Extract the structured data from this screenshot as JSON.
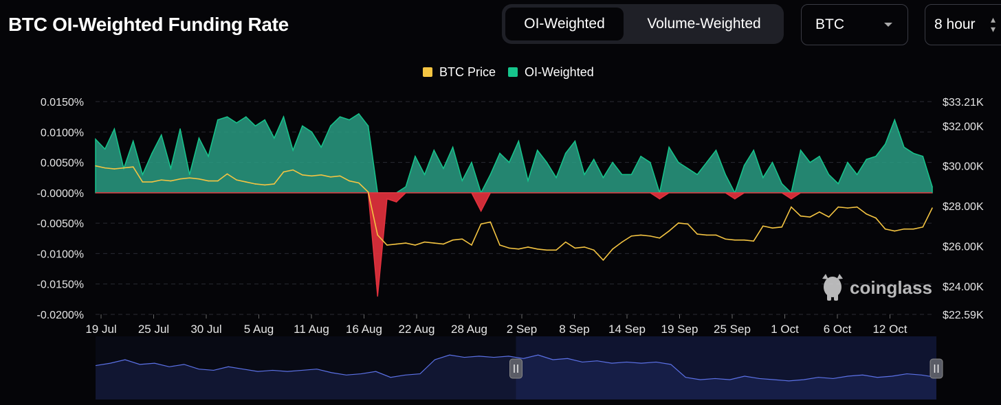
{
  "header": {
    "title": "BTC OI-Weighted Funding Rate",
    "tabs": [
      {
        "label": "OI-Weighted",
        "active": true
      },
      {
        "label": "Volume-Weighted",
        "active": false
      }
    ],
    "symbol_select": {
      "value": "BTC",
      "icon": "chevron-down-icon"
    },
    "interval_select": {
      "value": "8 hour",
      "icon": "up-down-arrows-icon"
    }
  },
  "watermark": {
    "text": "coinglass",
    "icon": "bull-logo-icon"
  },
  "colors": {
    "background": "#050508",
    "price": "#f5c542",
    "positive": "#16c58c",
    "positive_fill": "#2a9c82",
    "negative": "#e5323e",
    "navigator_line": "#5c72e8",
    "navigator_fill": "#0f1430"
  },
  "chart_data": {
    "type": "area",
    "legend": [
      {
        "name": "BTC Price",
        "color": "#f5c542"
      },
      {
        "name": "OI-Weighted",
        "color": "#16c58c"
      }
    ],
    "legend_position": "top-center",
    "y_left_ticks": [
      "0.0150%",
      "0.0100%",
      "0.0050%",
      "-0.0000%",
      "-0.0050%",
      "-0.0100%",
      "-0.0150%",
      "-0.0200%"
    ],
    "y_right_ticks": [
      "$33.21K",
      "$32.00K",
      "$30.00K",
      "$28.00K",
      "$26.00K",
      "$24.00K",
      "$22.59K"
    ],
    "y_left_range": [
      -0.02,
      0.015
    ],
    "y_right_range": [
      22.59,
      33.21
    ],
    "y_right_tick_values": [
      33.21,
      32.0,
      30.0,
      28.0,
      26.0,
      24.0,
      22.59
    ],
    "x_ticks": [
      "19 Jul",
      "25 Jul",
      "30 Jul",
      "5 Aug",
      "11 Aug",
      "16 Aug",
      "22 Aug",
      "28 Aug",
      "2 Sep",
      "8 Sep",
      "14 Sep",
      "19 Sep",
      "25 Sep",
      "1 Oct",
      "6 Oct",
      "12 Oct"
    ],
    "x_range": [
      "2023-07-19",
      "2023-10-16"
    ],
    "grid": "horizontal-dashed",
    "series": [
      {
        "name": "OI-Weighted",
        "unit": "%",
        "points": [
          [
            "2023-07-19",
            0.0088
          ],
          [
            "2023-07-20",
            0.0072
          ],
          [
            "2023-07-21",
            0.0105
          ],
          [
            "2023-07-22",
            0.004
          ],
          [
            "2023-07-23",
            0.0085
          ],
          [
            "2023-07-24",
            0.003
          ],
          [
            "2023-07-25",
            0.0065
          ],
          [
            "2023-07-26",
            0.0095
          ],
          [
            "2023-07-27",
            0.004
          ],
          [
            "2023-07-28",
            0.0105
          ],
          [
            "2023-07-29",
            0.003
          ],
          [
            "2023-07-30",
            0.009
          ],
          [
            "2023-07-31",
            0.006
          ],
          [
            "2023-08-01",
            0.012
          ],
          [
            "2023-08-02",
            0.0125
          ],
          [
            "2023-08-03",
            0.0115
          ],
          [
            "2023-08-04",
            0.0125
          ],
          [
            "2023-08-05",
            0.011
          ],
          [
            "2023-08-06",
            0.012
          ],
          [
            "2023-08-07",
            0.009
          ],
          [
            "2023-08-08",
            0.0125
          ],
          [
            "2023-08-09",
            0.007
          ],
          [
            "2023-08-10",
            0.011
          ],
          [
            "2023-08-11",
            0.01
          ],
          [
            "2023-08-12",
            0.0075
          ],
          [
            "2023-08-13",
            0.011
          ],
          [
            "2023-08-14",
            0.0125
          ],
          [
            "2023-08-15",
            0.012
          ],
          [
            "2023-08-16",
            0.013
          ],
          [
            "2023-08-17",
            0.011
          ],
          [
            "2023-08-18",
            -0.017
          ],
          [
            "2023-08-19",
            -0.001
          ],
          [
            "2023-08-20",
            -0.0015
          ],
          [
            "2023-08-21",
            0.001
          ],
          [
            "2023-08-22",
            0.006
          ],
          [
            "2023-08-23",
            0.003
          ],
          [
            "2023-08-24",
            0.007
          ],
          [
            "2023-08-25",
            0.004
          ],
          [
            "2023-08-26",
            0.0075
          ],
          [
            "2023-08-27",
            0.002
          ],
          [
            "2023-08-28",
            0.005
          ],
          [
            "2023-08-29",
            -0.003
          ],
          [
            "2023-08-30",
            0.003
          ],
          [
            "2023-08-31",
            0.0065
          ],
          [
            "2023-09-01",
            0.005
          ],
          [
            "2023-09-02",
            0.0085
          ],
          [
            "2023-09-03",
            0.002
          ],
          [
            "2023-09-04",
            0.007
          ],
          [
            "2023-09-05",
            0.005
          ],
          [
            "2023-09-06",
            0.0025
          ],
          [
            "2023-09-07",
            0.0065
          ],
          [
            "2023-09-08",
            0.0085
          ],
          [
            "2023-09-09",
            0.003
          ],
          [
            "2023-09-10",
            0.0055
          ],
          [
            "2023-09-11",
            0.0025
          ],
          [
            "2023-09-12",
            0.005
          ],
          [
            "2023-09-13",
            0.003
          ],
          [
            "2023-09-14",
            0.003
          ],
          [
            "2023-09-15",
            0.006
          ],
          [
            "2023-09-16",
            0.005
          ],
          [
            "2023-09-17",
            -0.001
          ],
          [
            "2023-09-18",
            0.0075
          ],
          [
            "2023-09-19",
            0.005
          ],
          [
            "2023-09-20",
            0.004
          ],
          [
            "2023-09-21",
            0.003
          ],
          [
            "2023-09-22",
            0.005
          ],
          [
            "2023-09-23",
            0.007
          ],
          [
            "2023-09-24",
            0.003
          ],
          [
            "2023-09-25",
            -0.001
          ],
          [
            "2023-09-26",
            0.0045
          ],
          [
            "2023-09-27",
            0.007
          ],
          [
            "2023-09-28",
            0.0025
          ],
          [
            "2023-09-29",
            0.005
          ],
          [
            "2023-09-30",
            0.0015
          ],
          [
            "2023-10-01",
            -0.001
          ],
          [
            "2023-10-02",
            0.007
          ],
          [
            "2023-10-03",
            0.005
          ],
          [
            "2023-10-04",
            0.006
          ],
          [
            "2023-10-05",
            0.003
          ],
          [
            "2023-10-06",
            0.0015
          ],
          [
            "2023-10-07",
            0.005
          ],
          [
            "2023-10-08",
            0.003
          ],
          [
            "2023-10-09",
            0.0055
          ],
          [
            "2023-10-10",
            0.006
          ],
          [
            "2023-10-11",
            0.008
          ],
          [
            "2023-10-12",
            0.012
          ],
          [
            "2023-10-13",
            0.0075
          ],
          [
            "2023-10-14",
            0.0065
          ],
          [
            "2023-10-15",
            0.006
          ],
          [
            "2023-10-16",
            0.001
          ]
        ]
      },
      {
        "name": "BTC Price",
        "unit": "USD K",
        "points": [
          [
            "2023-07-19",
            30.0
          ],
          [
            "2023-07-20",
            29.9
          ],
          [
            "2023-07-21",
            29.85
          ],
          [
            "2023-07-22",
            29.9
          ],
          [
            "2023-07-23",
            29.95
          ],
          [
            "2023-07-24",
            29.2
          ],
          [
            "2023-07-25",
            29.2
          ],
          [
            "2023-07-26",
            29.3
          ],
          [
            "2023-07-27",
            29.25
          ],
          [
            "2023-07-28",
            29.35
          ],
          [
            "2023-07-29",
            29.4
          ],
          [
            "2023-07-30",
            29.35
          ],
          [
            "2023-07-31",
            29.25
          ],
          [
            "2023-08-01",
            29.25
          ],
          [
            "2023-08-02",
            29.6
          ],
          [
            "2023-08-03",
            29.3
          ],
          [
            "2023-08-04",
            29.2
          ],
          [
            "2023-08-05",
            29.1
          ],
          [
            "2023-08-06",
            29.05
          ],
          [
            "2023-08-07",
            29.1
          ],
          [
            "2023-08-08",
            29.7
          ],
          [
            "2023-08-09",
            29.8
          ],
          [
            "2023-08-10",
            29.55
          ],
          [
            "2023-08-11",
            29.5
          ],
          [
            "2023-08-12",
            29.55
          ],
          [
            "2023-08-13",
            29.45
          ],
          [
            "2023-08-14",
            29.5
          ],
          [
            "2023-08-15",
            29.25
          ],
          [
            "2023-08-16",
            29.15
          ],
          [
            "2023-08-17",
            28.7
          ],
          [
            "2023-08-18",
            26.55
          ],
          [
            "2023-08-19",
            26.05
          ],
          [
            "2023-08-20",
            26.1
          ],
          [
            "2023-08-21",
            26.15
          ],
          [
            "2023-08-22",
            26.05
          ],
          [
            "2023-08-23",
            26.2
          ],
          [
            "2023-08-24",
            26.15
          ],
          [
            "2023-08-25",
            26.1
          ],
          [
            "2023-08-26",
            26.3
          ],
          [
            "2023-08-27",
            26.35
          ],
          [
            "2023-08-28",
            26.05
          ],
          [
            "2023-08-29",
            27.1
          ],
          [
            "2023-08-30",
            27.2
          ],
          [
            "2023-08-31",
            26.05
          ],
          [
            "2023-09-01",
            25.9
          ],
          [
            "2023-09-02",
            25.85
          ],
          [
            "2023-09-03",
            25.95
          ],
          [
            "2023-09-04",
            25.85
          ],
          [
            "2023-09-05",
            25.8
          ],
          [
            "2023-09-06",
            25.8
          ],
          [
            "2023-09-07",
            26.2
          ],
          [
            "2023-09-08",
            25.9
          ],
          [
            "2023-09-09",
            25.95
          ],
          [
            "2023-09-10",
            25.8
          ],
          [
            "2023-09-11",
            25.3
          ],
          [
            "2023-09-12",
            25.85
          ],
          [
            "2023-09-13",
            26.2
          ],
          [
            "2023-09-14",
            26.5
          ],
          [
            "2023-09-15",
            26.55
          ],
          [
            "2023-09-16",
            26.5
          ],
          [
            "2023-09-17",
            26.4
          ],
          [
            "2023-09-18",
            26.75
          ],
          [
            "2023-09-19",
            27.15
          ],
          [
            "2023-09-20",
            27.1
          ],
          [
            "2023-09-21",
            26.6
          ],
          [
            "2023-09-22",
            26.55
          ],
          [
            "2023-09-23",
            26.55
          ],
          [
            "2023-09-24",
            26.35
          ],
          [
            "2023-09-25",
            26.3
          ],
          [
            "2023-09-26",
            26.3
          ],
          [
            "2023-09-27",
            26.25
          ],
          [
            "2023-09-28",
            27.0
          ],
          [
            "2023-09-29",
            26.9
          ],
          [
            "2023-09-30",
            26.95
          ],
          [
            "2023-10-01",
            27.95
          ],
          [
            "2023-10-02",
            27.5
          ],
          [
            "2023-10-03",
            27.45
          ],
          [
            "2023-10-04",
            27.7
          ],
          [
            "2023-10-05",
            27.45
          ],
          [
            "2023-10-06",
            27.95
          ],
          [
            "2023-10-07",
            27.9
          ],
          [
            "2023-10-08",
            27.95
          ],
          [
            "2023-10-09",
            27.6
          ],
          [
            "2023-10-10",
            27.4
          ],
          [
            "2023-10-11",
            26.85
          ],
          [
            "2023-10-12",
            26.75
          ],
          [
            "2023-10-13",
            26.85
          ],
          [
            "2023-10-14",
            26.85
          ],
          [
            "2023-10-15",
            26.95
          ],
          [
            "2023-10-16",
            27.9
          ]
        ]
      }
    ]
  },
  "navigator": {
    "left_handle_icon": "pause-handle-icon",
    "right_handle_icon": "pause-handle-icon",
    "selection_start_fraction": 0.5,
    "selection_end_fraction": 1.0,
    "series": [
      31.3,
      31.5,
      31.8,
      31.4,
      31.5,
      31.2,
      31.4,
      31.0,
      30.9,
      31.2,
      31.0,
      30.8,
      30.9,
      30.8,
      30.9,
      31.0,
      30.7,
      30.5,
      30.6,
      30.8,
      30.3,
      30.5,
      30.6,
      31.8,
      32.2,
      32.0,
      32.1,
      32.0,
      32.1,
      31.9,
      32.2,
      31.8,
      31.9,
      31.6,
      31.7,
      31.5,
      31.6,
      31.5,
      31.6,
      31.4,
      30.3,
      30.1,
      30.2,
      30.1,
      30.4,
      30.2,
      30.1,
      30.0,
      30.1,
      30.3,
      30.2,
      30.4,
      30.5,
      30.3,
      30.4,
      30.6,
      30.5,
      30.3
    ]
  }
}
